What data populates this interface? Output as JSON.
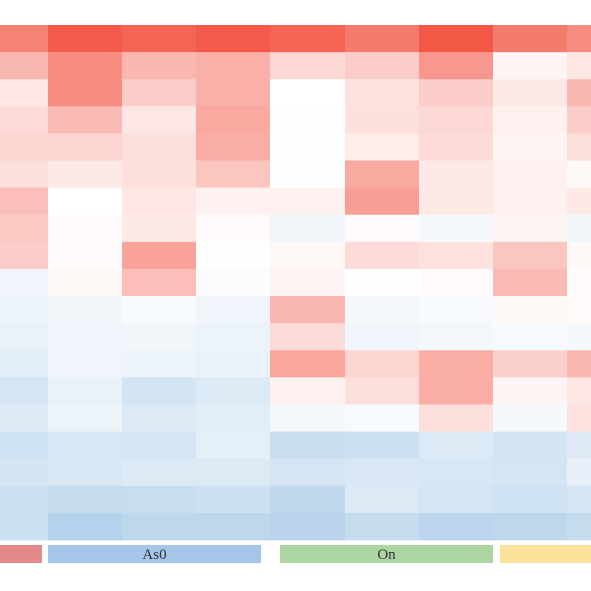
{
  "chart_data": {
    "type": "heatmap",
    "color_scale": {
      "low": "#8ab8df",
      "mid": "#ffffff",
      "high": "#f24c3a",
      "domain": [
        -1,
        0,
        1
      ]
    },
    "rows": 19,
    "columns": 9,
    "values": [
      [
        0.7,
        0.92,
        0.86,
        0.92,
        0.86,
        0.74,
        0.94,
        0.74,
        0.64
      ],
      [
        0.4,
        0.64,
        0.4,
        0.44,
        0.22,
        0.28,
        0.58,
        0.06,
        0.14
      ],
      [
        0.14,
        0.64,
        0.28,
        0.44,
        0.0,
        0.16,
        0.28,
        0.12,
        0.4
      ],
      [
        0.2,
        0.38,
        0.14,
        0.48,
        -0.02,
        0.18,
        0.22,
        0.08,
        0.28
      ],
      [
        0.24,
        0.24,
        0.18,
        0.46,
        -0.02,
        0.1,
        0.2,
        0.06,
        0.18
      ],
      [
        0.18,
        0.12,
        0.18,
        0.32,
        -0.02,
        0.48,
        0.12,
        0.08,
        0.04
      ],
      [
        0.36,
        0.0,
        0.14,
        0.08,
        0.08,
        0.54,
        0.12,
        0.08,
        0.12
      ],
      [
        0.3,
        0.02,
        0.12,
        0.02,
        -0.12,
        0.02,
        -0.08,
        0.06,
        -0.12
      ],
      [
        0.28,
        0.02,
        0.52,
        -0.02,
        0.04,
        0.2,
        0.16,
        0.32,
        0.04
      ],
      [
        -0.14,
        0.04,
        0.36,
        -0.04,
        0.06,
        -0.02,
        0.02,
        0.38,
        0.02
      ],
      [
        -0.16,
        -0.12,
        -0.06,
        -0.14,
        0.4,
        -0.08,
        -0.06,
        0.04,
        0.02
      ],
      [
        -0.18,
        -0.14,
        -0.12,
        -0.16,
        0.2,
        -0.14,
        -0.1,
        -0.06,
        -0.08
      ],
      [
        -0.24,
        -0.14,
        -0.16,
        -0.18,
        0.5,
        0.24,
        0.46,
        0.26,
        0.4
      ],
      [
        -0.36,
        -0.18,
        -0.38,
        -0.3,
        0.08,
        0.18,
        0.46,
        0.06,
        0.14
      ],
      [
        -0.28,
        -0.16,
        -0.3,
        -0.26,
        -0.1,
        -0.06,
        0.18,
        -0.08,
        0.16
      ],
      [
        -0.4,
        -0.34,
        -0.36,
        -0.22,
        -0.46,
        -0.44,
        -0.3,
        -0.38,
        -0.28
      ],
      [
        -0.38,
        -0.34,
        -0.3,
        -0.3,
        -0.36,
        -0.32,
        -0.34,
        -0.36,
        -0.2
      ],
      [
        -0.44,
        -0.5,
        -0.48,
        -0.42,
        -0.54,
        -0.3,
        -0.36,
        -0.4,
        -0.36
      ],
      [
        -0.44,
        -0.64,
        -0.56,
        -0.56,
        -0.6,
        -0.5,
        -0.58,
        -0.56,
        -0.5
      ]
    ],
    "column_groups": [
      {
        "label": "",
        "color": "#e58a8a",
        "start_col": 0,
        "end_col": 0
      },
      {
        "label": "As0",
        "color": "#a4c6e8",
        "start_col": 1,
        "end_col": 3
      },
      {
        "label": "On",
        "color": "#acd5a1",
        "start_col": 4,
        "end_col": 6
      },
      {
        "label": "",
        "color": "#fae29a",
        "start_col": 7,
        "end_col": 8
      }
    ]
  }
}
